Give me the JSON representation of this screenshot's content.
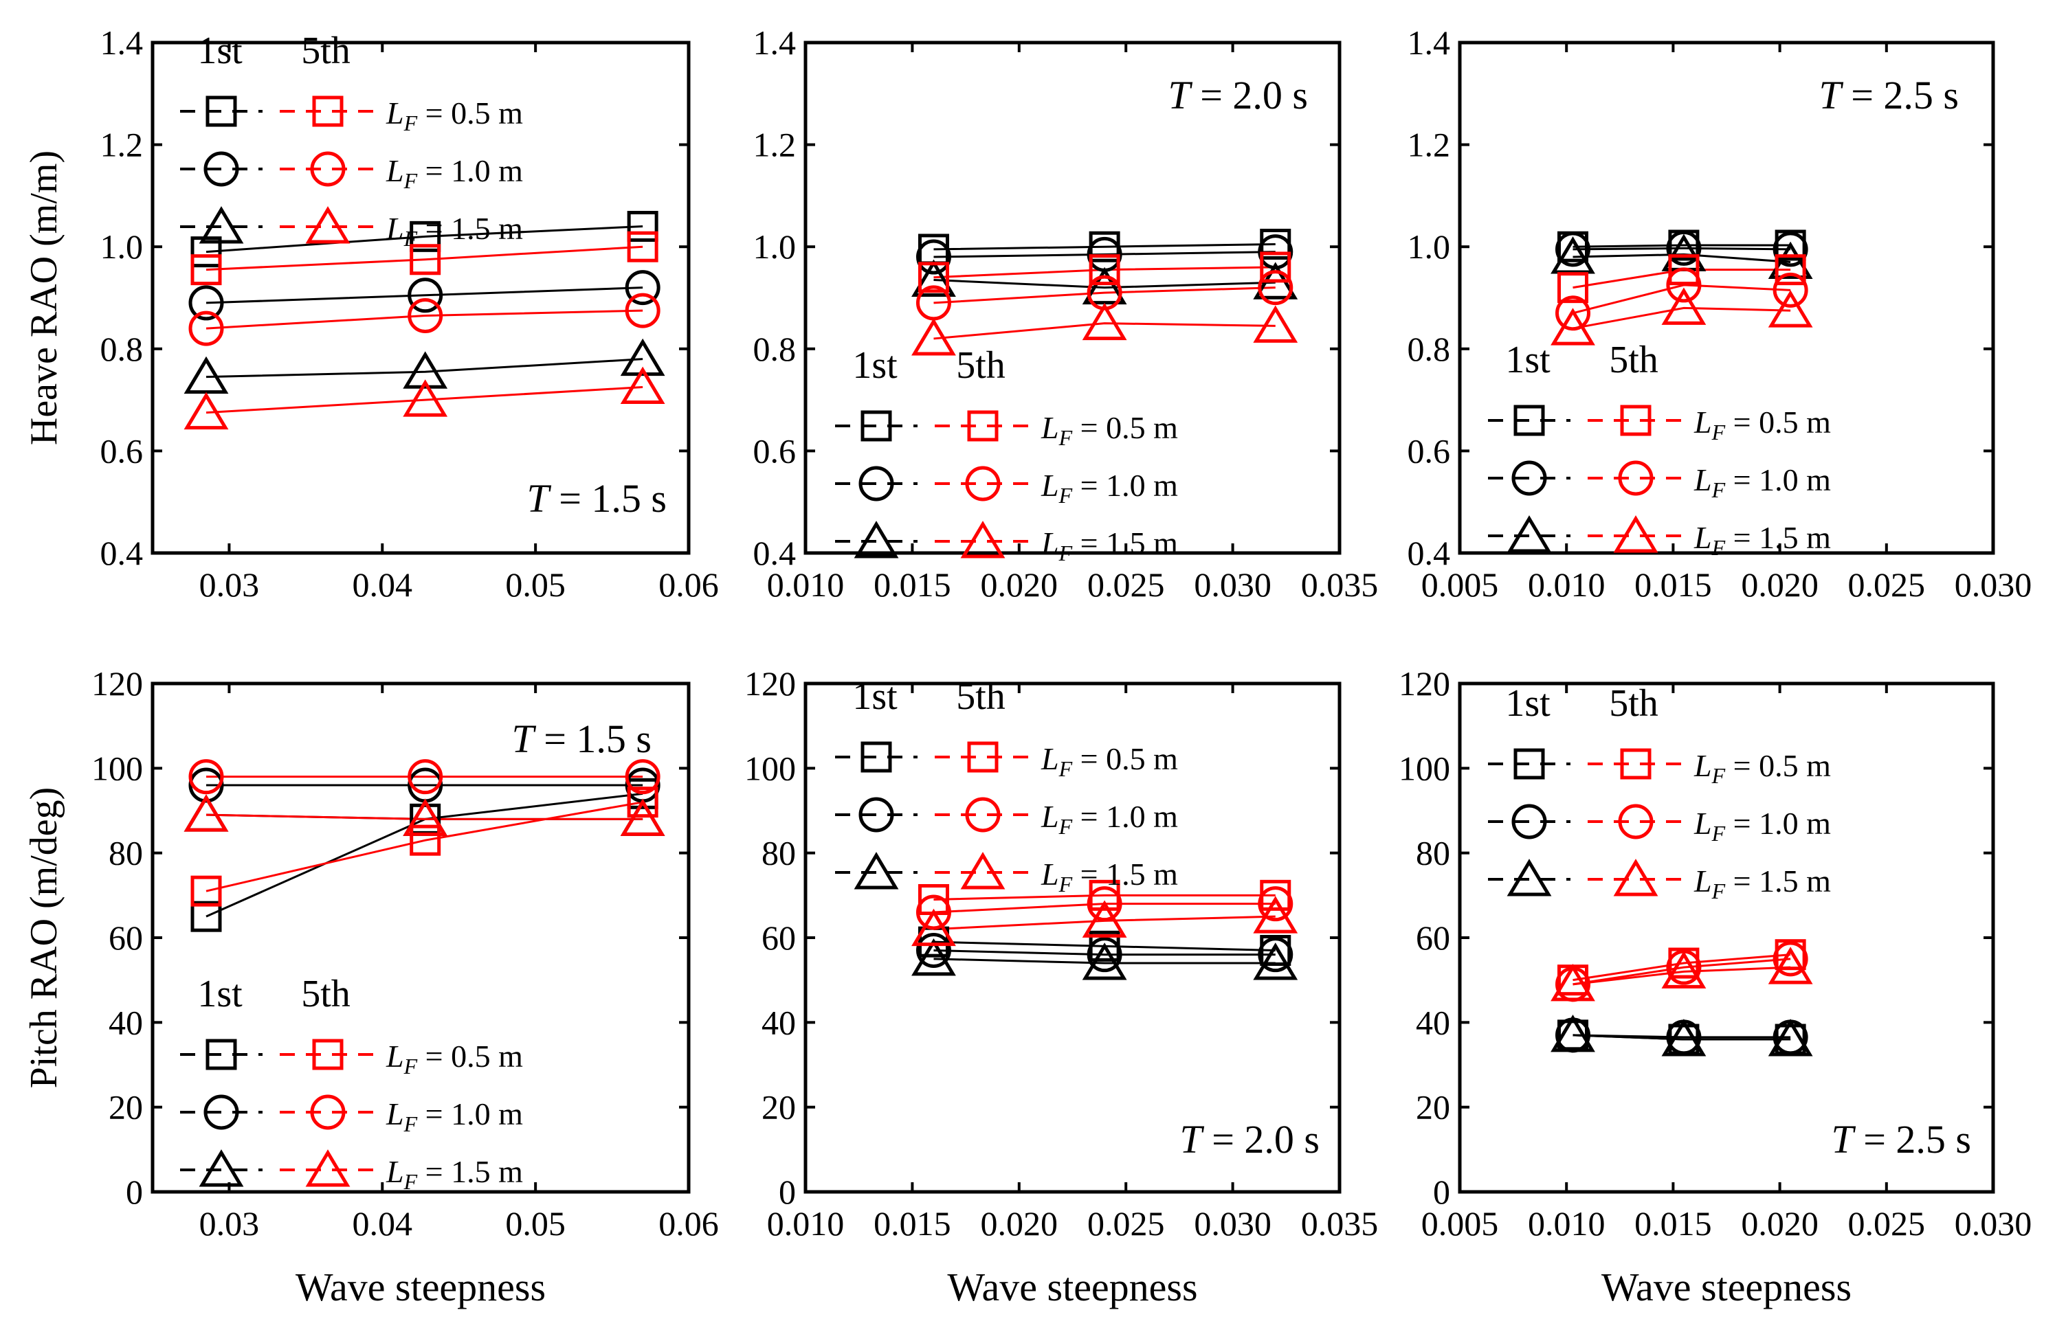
{
  "figure": {
    "colors": {
      "first": "#000000",
      "fifth": "#ff0000"
    },
    "legend": {
      "first_label": "1st",
      "fifth_label": "5th",
      "lf_prefix": "L",
      "lf_sub": "F",
      "entries": [
        {
          "marker": "square",
          "value": " = 0.5 m"
        },
        {
          "marker": "circle",
          "value": " = 1.0 m"
        },
        {
          "marker": "triangle",
          "value": " = 1.5 m"
        }
      ]
    }
  },
  "chart_data": [
    {
      "id": "heave-t15",
      "type": "line",
      "row": "heave",
      "col": 0,
      "title": "",
      "period_label": {
        "T": "T",
        "rest": " = 1.5 s"
      },
      "xlabel": "",
      "ylabel": "Heave RAO (m/m)",
      "xlim": [
        0.025,
        0.06
      ],
      "ylim": [
        0.4,
        1.4
      ],
      "xticks": [
        0.03,
        0.04,
        0.05,
        0.06
      ],
      "xtick_labels": [
        "0.03",
        "0.04",
        "0.05",
        "0.06"
      ],
      "yticks": [
        0.4,
        0.6,
        0.8,
        1.0,
        1.2,
        1.4
      ],
      "ytick_labels": [
        "0.4",
        "0.6",
        "0.8",
        "1.0",
        "1.2",
        "1.4"
      ],
      "x": [
        0.0285,
        0.0428,
        0.057
      ],
      "series": [
        {
          "name": "1st, L_F = 0.5 m",
          "order": "1st",
          "marker": "square",
          "values": [
            0.99,
            1.02,
            1.04
          ]
        },
        {
          "name": "1st, L_F = 1.0 m",
          "order": "1st",
          "marker": "circle",
          "values": [
            0.89,
            0.905,
            0.92
          ]
        },
        {
          "name": "1st, L_F = 1.5 m",
          "order": "1st",
          "marker": "triangle",
          "values": [
            0.745,
            0.755,
            0.78
          ]
        },
        {
          "name": "5th, L_F = 0.5 m",
          "order": "5th",
          "marker": "square",
          "values": [
            0.955,
            0.975,
            1.0
          ]
        },
        {
          "name": "5th, L_F = 1.0 m",
          "order": "5th",
          "marker": "circle",
          "values": [
            0.84,
            0.865,
            0.875
          ]
        },
        {
          "name": "5th, L_F = 1.5 m",
          "order": "5th",
          "marker": "triangle",
          "values": [
            0.675,
            0.7,
            0.725
          ]
        }
      ]
    },
    {
      "id": "heave-t20",
      "type": "line",
      "row": "heave",
      "col": 1,
      "title": "",
      "period_label": {
        "T": "T",
        "rest": " = 2.0 s"
      },
      "xlabel": "",
      "ylabel": "",
      "xlim": [
        0.01,
        0.035
      ],
      "ylim": [
        0.4,
        1.4
      ],
      "xticks": [
        0.01,
        0.015,
        0.02,
        0.025,
        0.03,
        0.035
      ],
      "xtick_labels": [
        "0.010",
        "0.015",
        "0.020",
        "0.025",
        "0.030",
        "0.035"
      ],
      "yticks": [
        0.4,
        0.6,
        0.8,
        1.0,
        1.2,
        1.4
      ],
      "ytick_labels": [
        "0.4",
        "0.6",
        "0.8",
        "1.0",
        "1.2",
        "1.4"
      ],
      "x": [
        0.016,
        0.024,
        0.032
      ],
      "series": [
        {
          "name": "1st, L_F = 0.5 m",
          "order": "1st",
          "marker": "square",
          "values": [
            0.995,
            1.0,
            1.005
          ]
        },
        {
          "name": "1st, L_F = 1.0 m",
          "order": "1st",
          "marker": "circle",
          "values": [
            0.98,
            0.985,
            0.99
          ]
        },
        {
          "name": "1st, L_F = 1.5 m",
          "order": "1st",
          "marker": "triangle",
          "values": [
            0.935,
            0.92,
            0.93
          ]
        },
        {
          "name": "5th, L_F = 0.5 m",
          "order": "5th",
          "marker": "square",
          "values": [
            0.94,
            0.955,
            0.96
          ]
        },
        {
          "name": "5th, L_F = 1.0 m",
          "order": "5th",
          "marker": "circle",
          "values": [
            0.89,
            0.91,
            0.92
          ]
        },
        {
          "name": "5th, L_F = 1.5 m",
          "order": "5th",
          "marker": "triangle",
          "values": [
            0.82,
            0.85,
            0.845
          ]
        }
      ]
    },
    {
      "id": "heave-t25",
      "type": "line",
      "row": "heave",
      "col": 2,
      "title": "",
      "period_label": {
        "T": "T",
        "rest": " = 2.5 s"
      },
      "xlabel": "",
      "ylabel": "",
      "xlim": [
        0.005,
        0.03
      ],
      "ylim": [
        0.4,
        1.4
      ],
      "xticks": [
        0.005,
        0.01,
        0.015,
        0.02,
        0.025,
        0.03
      ],
      "xtick_labels": [
        "0.005",
        "0.010",
        "0.015",
        "0.020",
        "0.025",
        "0.030"
      ],
      "yticks": [
        0.4,
        0.6,
        0.8,
        1.0,
        1.2,
        1.4
      ],
      "ytick_labels": [
        "0.4",
        "0.6",
        "0.8",
        "1.0",
        "1.2",
        "1.4"
      ],
      "x": [
        0.0103,
        0.0155,
        0.0205
      ],
      "series": [
        {
          "name": "1st, L_F = 0.5 m",
          "order": "1st",
          "marker": "square",
          "values": [
            1.0,
            1.003,
            1.003
          ]
        },
        {
          "name": "1st, L_F = 1.0 m",
          "order": "1st",
          "marker": "circle",
          "values": [
            0.995,
            0.997,
            0.995
          ]
        },
        {
          "name": "1st, L_F = 1.5 m",
          "order": "1st",
          "marker": "triangle",
          "values": [
            0.98,
            0.985,
            0.97
          ]
        },
        {
          "name": "5th, L_F = 0.5 m",
          "order": "5th",
          "marker": "square",
          "values": [
            0.92,
            0.955,
            0.955
          ]
        },
        {
          "name": "5th, L_F = 1.0 m",
          "order": "5th",
          "marker": "circle",
          "values": [
            0.87,
            0.925,
            0.915
          ]
        },
        {
          "name": "5th, L_F = 1.5 m",
          "order": "5th",
          "marker": "triangle",
          "values": [
            0.84,
            0.88,
            0.875
          ]
        }
      ]
    },
    {
      "id": "pitch-t15",
      "type": "line",
      "row": "pitch",
      "col": 0,
      "title": "",
      "period_label": {
        "T": "T",
        "rest": " = 1.5 s"
      },
      "xlabel": "Wave steepness",
      "ylabel": "Pitch RAO (m/deg)",
      "xlim": [
        0.025,
        0.06
      ],
      "ylim": [
        0,
        120
      ],
      "xticks": [
        0.03,
        0.04,
        0.05,
        0.06
      ],
      "xtick_labels": [
        "0.03",
        "0.04",
        "0.05",
        "0.06"
      ],
      "yticks": [
        0,
        20,
        40,
        60,
        80,
        100,
        120
      ],
      "ytick_labels": [
        "0",
        "20",
        "40",
        "60",
        "80",
        "100",
        "120"
      ],
      "x": [
        0.0285,
        0.0428,
        0.057
      ],
      "series": [
        {
          "name": "1st, L_F = 0.5 m",
          "order": "1st",
          "marker": "square",
          "values": [
            65,
            88,
            94
          ]
        },
        {
          "name": "1st, L_F = 1.0 m",
          "order": "1st",
          "marker": "circle",
          "values": [
            96,
            96,
            96
          ]
        },
        {
          "name": "1st, L_F = 1.5 m",
          "order": "1st",
          "marker": "triangle",
          "values": [
            89,
            88,
            88
          ]
        },
        {
          "name": "5th, L_F = 0.5 m",
          "order": "5th",
          "marker": "square",
          "values": [
            71,
            83,
            92
          ]
        },
        {
          "name": "5th, L_F = 1.0 m",
          "order": "5th",
          "marker": "circle",
          "values": [
            98,
            98,
            98
          ]
        },
        {
          "name": "5th, L_F = 1.5 m",
          "order": "5th",
          "marker": "triangle",
          "values": [
            89,
            88,
            88
          ]
        }
      ]
    },
    {
      "id": "pitch-t20",
      "type": "line",
      "row": "pitch",
      "col": 1,
      "title": "",
      "period_label": {
        "T": "T",
        "rest": " = 2.0 s"
      },
      "xlabel": "Wave steepness",
      "ylabel": "",
      "xlim": [
        0.01,
        0.035
      ],
      "ylim": [
        0,
        120
      ],
      "xticks": [
        0.01,
        0.015,
        0.02,
        0.025,
        0.03,
        0.035
      ],
      "xtick_labels": [
        "0.010",
        "0.015",
        "0.020",
        "0.025",
        "0.030",
        "0.035"
      ],
      "yticks": [
        0,
        20,
        40,
        60,
        80,
        100,
        120
      ],
      "ytick_labels": [
        "0",
        "20",
        "40",
        "60",
        "80",
        "100",
        "120"
      ],
      "x": [
        0.016,
        0.024,
        0.032
      ],
      "series": [
        {
          "name": "1st, L_F = 0.5 m",
          "order": "1st",
          "marker": "square",
          "values": [
            59,
            58,
            57
          ]
        },
        {
          "name": "1st, L_F = 1.0 m",
          "order": "1st",
          "marker": "circle",
          "values": [
            57,
            56,
            56
          ]
        },
        {
          "name": "1st, L_F = 1.5 m",
          "order": "1st",
          "marker": "triangle",
          "values": [
            55,
            54,
            54
          ]
        },
        {
          "name": "5th, L_F = 0.5 m",
          "order": "5th",
          "marker": "square",
          "values": [
            69,
            70,
            70
          ]
        },
        {
          "name": "5th, L_F = 1.0 m",
          "order": "5th",
          "marker": "circle",
          "values": [
            66,
            68,
            68
          ]
        },
        {
          "name": "5th, L_F = 1.5 m",
          "order": "5th",
          "marker": "triangle",
          "values": [
            62,
            64,
            65
          ]
        }
      ]
    },
    {
      "id": "pitch-t25",
      "type": "line",
      "row": "pitch",
      "col": 2,
      "title": "",
      "period_label": {
        "T": "T",
        "rest": " = 2.5 s"
      },
      "xlabel": "Wave steepness",
      "ylabel": "",
      "xlim": [
        0.005,
        0.03
      ],
      "ylim": [
        0,
        120
      ],
      "xticks": [
        0.005,
        0.01,
        0.015,
        0.02,
        0.025,
        0.03
      ],
      "xtick_labels": [
        "0.005",
        "0.010",
        "0.015",
        "0.020",
        "0.025",
        "0.030"
      ],
      "yticks": [
        0,
        20,
        40,
        60,
        80,
        100,
        120
      ],
      "ytick_labels": [
        "0",
        "20",
        "40",
        "60",
        "80",
        "100",
        "120"
      ],
      "x": [
        0.0103,
        0.0155,
        0.0205
      ],
      "series": [
        {
          "name": "1st, L_F = 0.5 m",
          "order": "1st",
          "marker": "square",
          "values": [
            37,
            36,
            36
          ]
        },
        {
          "name": "1st, L_F = 1.0 m",
          "order": "1st",
          "marker": "circle",
          "values": [
            37,
            36.5,
            36.5
          ]
        },
        {
          "name": "1st, L_F = 1.5 m",
          "order": "1st",
          "marker": "triangle",
          "values": [
            37,
            36,
            36
          ]
        },
        {
          "name": "5th, L_F = 0.5 m",
          "order": "5th",
          "marker": "square",
          "values": [
            50,
            54,
            56
          ]
        },
        {
          "name": "5th, L_F = 1.0 m",
          "order": "5th",
          "marker": "circle",
          "values": [
            49,
            53,
            55
          ]
        },
        {
          "name": "5th, L_F = 1.5 m",
          "order": "5th",
          "marker": "triangle",
          "values": [
            49,
            52,
            53
          ]
        }
      ]
    }
  ]
}
